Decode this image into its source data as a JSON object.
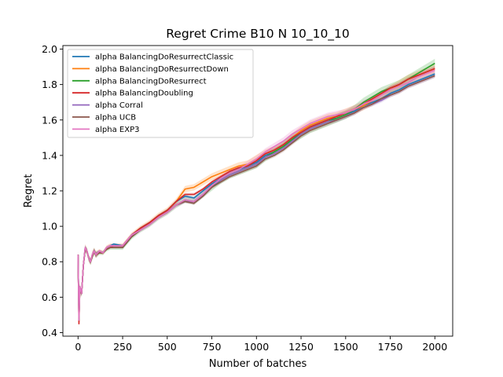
{
  "chart_data": {
    "type": "line",
    "title": "Regret Crime B10 N 10_10_10",
    "xlabel": "Number of batches",
    "ylabel": "Regret",
    "xlim": [
      -85,
      2100
    ],
    "ylim": [
      0.38,
      2.02
    ],
    "xticks": [
      0,
      250,
      500,
      750,
      1000,
      1250,
      1500,
      1750,
      2000
    ],
    "yticks": [
      0.4,
      0.6,
      0.8,
      1.0,
      1.2,
      1.4,
      1.6,
      1.8,
      2.0
    ],
    "grid": false,
    "legend_position": "top-left",
    "band": "shaded spread around each line",
    "series": [
      {
        "name": "alpha BalancingDoResurrectClassic",
        "color": "#1f77b4",
        "x": [
          0,
          5,
          10,
          20,
          30,
          40,
          50,
          60,
          70,
          80,
          90,
          100,
          120,
          140,
          160,
          180,
          200,
          250,
          300,
          350,
          400,
          450,
          500,
          550,
          600,
          650,
          700,
          750,
          800,
          850,
          900,
          950,
          1000,
          1050,
          1100,
          1150,
          1200,
          1250,
          1300,
          1350,
          1400,
          1450,
          1500,
          1550,
          1600,
          1650,
          1700,
          1750,
          1800,
          1850,
          1900,
          1950,
          2000
        ],
        "y": [
          0.84,
          0.48,
          0.66,
          0.62,
          0.78,
          0.88,
          0.86,
          0.82,
          0.8,
          0.84,
          0.86,
          0.84,
          0.86,
          0.85,
          0.88,
          0.89,
          0.9,
          0.89,
          0.95,
          0.99,
          1.02,
          1.06,
          1.09,
          1.14,
          1.17,
          1.16,
          1.2,
          1.24,
          1.27,
          1.3,
          1.32,
          1.34,
          1.36,
          1.4,
          1.42,
          1.45,
          1.49,
          1.53,
          1.56,
          1.58,
          1.6,
          1.61,
          1.63,
          1.65,
          1.68,
          1.7,
          1.72,
          1.75,
          1.77,
          1.8,
          1.82,
          1.84,
          1.86
        ],
        "spread": 0.012
      },
      {
        "name": "alpha BalancingDoResurrectDown",
        "color": "#ff7f0e",
        "x": [
          0,
          5,
          10,
          20,
          30,
          40,
          50,
          60,
          70,
          80,
          90,
          100,
          120,
          140,
          160,
          180,
          200,
          250,
          300,
          350,
          400,
          450,
          500,
          550,
          600,
          650,
          700,
          750,
          800,
          850,
          900,
          950,
          1000,
          1050,
          1100,
          1150,
          1200,
          1250,
          1300,
          1350,
          1400,
          1450,
          1500,
          1550,
          1600,
          1650,
          1700,
          1750,
          1800,
          1850,
          1900,
          1950,
          2000
        ],
        "y": [
          0.84,
          0.46,
          0.66,
          0.62,
          0.78,
          0.88,
          0.86,
          0.82,
          0.8,
          0.84,
          0.86,
          0.84,
          0.86,
          0.85,
          0.88,
          0.89,
          0.89,
          0.89,
          0.95,
          0.99,
          1.02,
          1.06,
          1.09,
          1.14,
          1.21,
          1.22,
          1.25,
          1.28,
          1.3,
          1.32,
          1.34,
          1.35,
          1.38,
          1.41,
          1.43,
          1.46,
          1.5,
          1.54,
          1.57,
          1.59,
          1.61,
          1.62,
          1.64,
          1.66,
          1.68,
          1.71,
          1.74,
          1.77,
          1.8,
          1.83,
          1.85,
          1.87,
          1.89
        ],
        "spread": 0.025
      },
      {
        "name": "alpha BalancingDoResurrect",
        "color": "#2ca02c",
        "x": [
          0,
          5,
          10,
          20,
          30,
          40,
          50,
          60,
          70,
          80,
          90,
          100,
          120,
          140,
          160,
          180,
          200,
          250,
          300,
          350,
          400,
          450,
          500,
          550,
          600,
          650,
          700,
          750,
          800,
          850,
          900,
          950,
          1000,
          1050,
          1100,
          1150,
          1200,
          1250,
          1300,
          1350,
          1400,
          1450,
          1500,
          1550,
          1600,
          1650,
          1700,
          1750,
          1800,
          1850,
          1900,
          1950,
          2000
        ],
        "y": [
          0.84,
          0.47,
          0.65,
          0.62,
          0.78,
          0.87,
          0.86,
          0.82,
          0.8,
          0.83,
          0.86,
          0.84,
          0.85,
          0.85,
          0.87,
          0.88,
          0.88,
          0.88,
          0.94,
          0.98,
          1.01,
          1.05,
          1.08,
          1.12,
          1.15,
          1.14,
          1.18,
          1.22,
          1.26,
          1.29,
          1.31,
          1.33,
          1.35,
          1.39,
          1.42,
          1.45,
          1.49,
          1.52,
          1.55,
          1.57,
          1.59,
          1.61,
          1.63,
          1.66,
          1.7,
          1.73,
          1.76,
          1.78,
          1.8,
          1.83,
          1.86,
          1.89,
          1.92
        ],
        "spread": 0.025
      },
      {
        "name": "alpha BalancingDoubling",
        "color": "#d62728",
        "x": [
          0,
          5,
          10,
          20,
          30,
          40,
          50,
          60,
          70,
          80,
          90,
          100,
          120,
          140,
          160,
          180,
          200,
          250,
          300,
          350,
          400,
          450,
          500,
          550,
          600,
          650,
          700,
          750,
          800,
          850,
          900,
          950,
          1000,
          1050,
          1100,
          1150,
          1200,
          1250,
          1300,
          1350,
          1400,
          1450,
          1500,
          1550,
          1600,
          1650,
          1700,
          1750,
          1800,
          1850,
          1900,
          1950,
          2000
        ],
        "y": [
          0.84,
          0.45,
          0.65,
          0.62,
          0.78,
          0.87,
          0.86,
          0.82,
          0.8,
          0.83,
          0.86,
          0.84,
          0.85,
          0.85,
          0.87,
          0.88,
          0.89,
          0.89,
          0.95,
          0.99,
          1.02,
          1.06,
          1.09,
          1.14,
          1.18,
          1.18,
          1.21,
          1.25,
          1.28,
          1.31,
          1.33,
          1.34,
          1.37,
          1.41,
          1.43,
          1.46,
          1.5,
          1.53,
          1.56,
          1.58,
          1.6,
          1.62,
          1.64,
          1.66,
          1.69,
          1.72,
          1.75,
          1.78,
          1.8,
          1.83,
          1.85,
          1.87,
          1.89
        ],
        "spread": 0.012
      },
      {
        "name": "alpha Corral",
        "color": "#9467bd",
        "x": [
          0,
          5,
          10,
          20,
          30,
          40,
          50,
          60,
          70,
          80,
          90,
          100,
          120,
          140,
          160,
          180,
          200,
          250,
          300,
          350,
          400,
          450,
          500,
          550,
          600,
          650,
          700,
          750,
          800,
          850,
          900,
          950,
          1000,
          1050,
          1100,
          1150,
          1200,
          1250,
          1300,
          1350,
          1400,
          1450,
          1500,
          1550,
          1600,
          1650,
          1700,
          1750,
          1800,
          1850,
          1900,
          1950,
          2000
        ],
        "y": [
          0.84,
          0.47,
          0.66,
          0.62,
          0.78,
          0.88,
          0.86,
          0.82,
          0.8,
          0.84,
          0.86,
          0.84,
          0.86,
          0.85,
          0.88,
          0.89,
          0.89,
          0.89,
          0.95,
          0.98,
          1.01,
          1.05,
          1.08,
          1.12,
          1.14,
          1.14,
          1.18,
          1.23,
          1.26,
          1.29,
          1.31,
          1.33,
          1.35,
          1.39,
          1.41,
          1.44,
          1.48,
          1.52,
          1.55,
          1.57,
          1.59,
          1.6,
          1.62,
          1.64,
          1.67,
          1.69,
          1.71,
          1.74,
          1.76,
          1.79,
          1.81,
          1.83,
          1.85
        ],
        "spread": 0.012
      },
      {
        "name": "alpha UCB",
        "color": "#8c564b",
        "x": [
          0,
          5,
          10,
          20,
          30,
          40,
          50,
          60,
          70,
          80,
          90,
          100,
          120,
          140,
          160,
          180,
          200,
          250,
          300,
          350,
          400,
          450,
          500,
          550,
          600,
          650,
          700,
          750,
          800,
          850,
          900,
          950,
          1000,
          1050,
          1100,
          1150,
          1200,
          1250,
          1300,
          1350,
          1400,
          1450,
          1500,
          1550,
          1600,
          1650,
          1700,
          1750,
          1800,
          1850,
          1900,
          1950,
          2000
        ],
        "y": [
          0.84,
          0.47,
          0.65,
          0.62,
          0.78,
          0.87,
          0.86,
          0.82,
          0.8,
          0.83,
          0.86,
          0.84,
          0.85,
          0.85,
          0.87,
          0.88,
          0.88,
          0.88,
          0.94,
          0.98,
          1.01,
          1.05,
          1.08,
          1.12,
          1.14,
          1.13,
          1.17,
          1.22,
          1.25,
          1.28,
          1.3,
          1.32,
          1.34,
          1.38,
          1.4,
          1.43,
          1.47,
          1.51,
          1.54,
          1.56,
          1.58,
          1.6,
          1.62,
          1.64,
          1.67,
          1.69,
          1.72,
          1.74,
          1.76,
          1.79,
          1.81,
          1.83,
          1.85
        ],
        "spread": 0.012
      },
      {
        "name": "alpha EXP3",
        "color": "#e377c2",
        "x": [
          0,
          5,
          10,
          20,
          30,
          40,
          50,
          60,
          70,
          80,
          90,
          100,
          120,
          140,
          160,
          180,
          200,
          250,
          300,
          350,
          400,
          450,
          500,
          550,
          600,
          650,
          700,
          750,
          800,
          850,
          900,
          950,
          1000,
          1050,
          1100,
          1150,
          1200,
          1250,
          1300,
          1350,
          1400,
          1450,
          1500,
          1550,
          1600,
          1650,
          1700,
          1750,
          1800,
          1850,
          1900,
          1950,
          2000
        ],
        "y": [
          0.84,
          0.47,
          0.66,
          0.62,
          0.78,
          0.88,
          0.86,
          0.82,
          0.8,
          0.84,
          0.86,
          0.84,
          0.86,
          0.85,
          0.88,
          0.89,
          0.89,
          0.89,
          0.95,
          0.98,
          1.01,
          1.05,
          1.08,
          1.12,
          1.15,
          1.14,
          1.18,
          1.23,
          1.27,
          1.3,
          1.32,
          1.35,
          1.38,
          1.42,
          1.45,
          1.48,
          1.52,
          1.55,
          1.58,
          1.6,
          1.62,
          1.63,
          1.64,
          1.66,
          1.69,
          1.71,
          1.74,
          1.77,
          1.79,
          1.81,
          1.84,
          1.86,
          1.88
        ],
        "spread": 0.022
      }
    ]
  }
}
